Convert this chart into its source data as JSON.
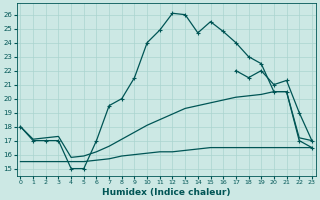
{
  "xlabel": "Humidex (Indice chaleur)",
  "background_color": "#cce8e4",
  "grid_color": "#aad4cf",
  "line_color": "#005555",
  "ylim": [
    14.5,
    26.8
  ],
  "yticks": [
    15,
    16,
    17,
    18,
    19,
    20,
    21,
    22,
    23,
    24,
    25,
    26
  ],
  "xticks": [
    0,
    1,
    2,
    3,
    4,
    5,
    6,
    7,
    8,
    9,
    10,
    11,
    12,
    13,
    14,
    15,
    16,
    17,
    18,
    19,
    20,
    21,
    22,
    23
  ],
  "xlim": [
    -0.3,
    23.3
  ],
  "x_main": [
    0,
    1,
    2,
    3,
    4,
    5,
    6,
    7,
    8,
    9,
    10,
    11,
    12,
    13,
    14,
    15,
    16,
    17,
    18,
    19,
    20,
    21,
    22,
    23
  ],
  "y_main": [
    18,
    17,
    17,
    17,
    15,
    15,
    17,
    19.5,
    20,
    21.5,
    24,
    24.9,
    26.1,
    26,
    24.7,
    25.5,
    24.8,
    24,
    23,
    22.5,
    20.5,
    20.5,
    17,
    16.5
  ],
  "y_diag": [
    18,
    17.1,
    17.2,
    17.3,
    15.8,
    15.9,
    16.2,
    16.6,
    17.1,
    17.6,
    18.1,
    18.5,
    18.9,
    19.3,
    19.5,
    19.7,
    19.9,
    20.1,
    20.2,
    20.3,
    20.5,
    20.5,
    17.2,
    17.0
  ],
  "y_flat": [
    15.5,
    15.5,
    15.5,
    15.5,
    15.5,
    15.5,
    15.6,
    15.7,
    15.9,
    16.0,
    16.1,
    16.2,
    16.2,
    16.3,
    16.4,
    16.5,
    16.5,
    16.5,
    16.5,
    16.5,
    16.5,
    16.5,
    16.5,
    16.5
  ],
  "x_second": [
    17,
    18,
    19,
    20,
    21,
    22,
    23
  ],
  "y_second": [
    22,
    21.5,
    22,
    21,
    21.3,
    19,
    17
  ]
}
